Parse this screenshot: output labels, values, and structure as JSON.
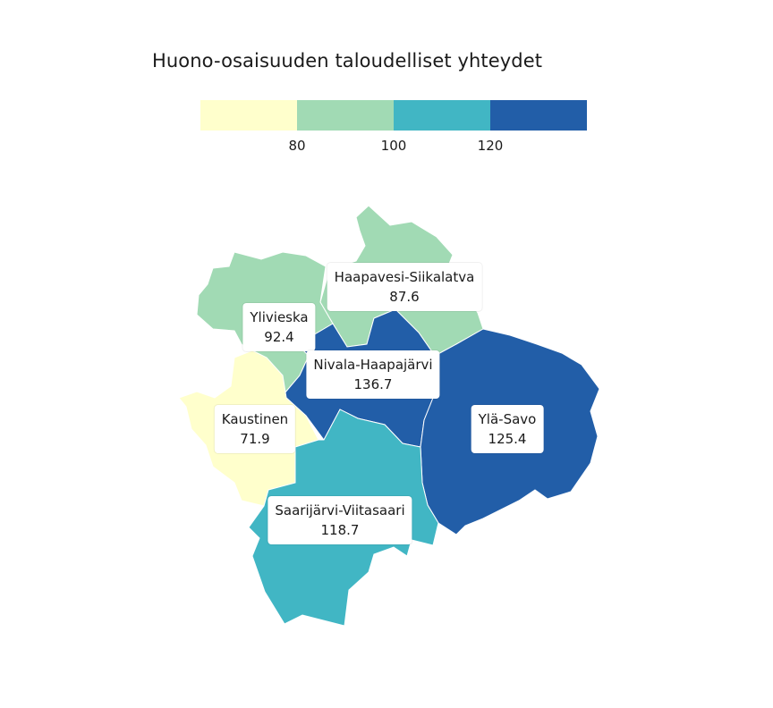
{
  "title": "Huono-osaisuuden taloudelliset yhteydet",
  "legend": {
    "colors": [
      "#ffffcc",
      "#a1dab4",
      "#41b6c4",
      "#225ea8"
    ],
    "ticks": [
      "80",
      "100",
      "120"
    ]
  },
  "regions": [
    {
      "name": "Haapavesi-Siikalatva",
      "value": "87.6",
      "color": "#a1dab4"
    },
    {
      "name": "Ylivieska",
      "value": "92.4",
      "color": "#a1dab4"
    },
    {
      "name": "Nivala-Haapajärvi",
      "value": "136.7",
      "color": "#225ea8"
    },
    {
      "name": "Kaustinen",
      "value": "71.9",
      "color": "#ffffcc"
    },
    {
      "name": "Ylä-Savo",
      "value": "125.4",
      "color": "#225ea8"
    },
    {
      "name": "Saarijärvi-Viitasaari",
      "value": "118.7",
      "color": "#41b6c4"
    }
  ]
}
